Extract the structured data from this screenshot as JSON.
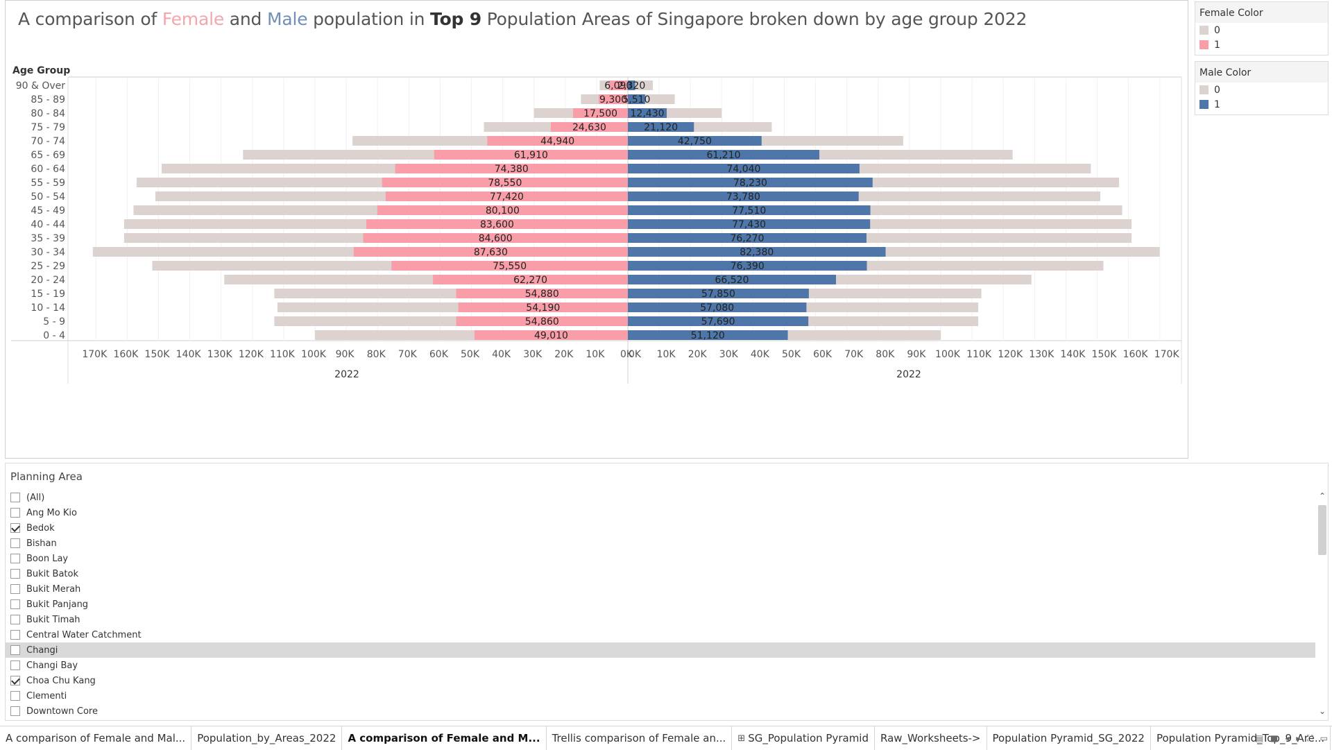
{
  "title": {
    "part1": "A comparison of ",
    "female_word": "Female",
    "part2": " and ",
    "male_word": "Male",
    "part3": " population in ",
    "bold_word": "Top 9",
    "part4": " Population Areas of Singapore broken down by age group 2022"
  },
  "colors": {
    "female": "#f99ea8",
    "male": "#4e76a8",
    "total": "#dcd3d0",
    "female_title": "#f4a6ac",
    "male_title": "#6f8fb7"
  },
  "legends": [
    {
      "title": "Female Color",
      "items": [
        {
          "label": "0",
          "color": "#dcd3d0"
        },
        {
          "label": "1",
          "color": "#f99ea8"
        }
      ]
    },
    {
      "title": "Male Color",
      "items": [
        {
          "label": "0",
          "color": "#dcd3d0"
        },
        {
          "label": "1",
          "color": "#4e76a8"
        }
      ]
    }
  ],
  "chart_data": {
    "type": "bar",
    "orientation": "horizontal-pyramid",
    "row_header": "Age Group",
    "categories": [
      "90 & Over",
      "85 - 89",
      "80 - 84",
      "75 - 79",
      "70 - 74",
      "65 - 69",
      "60 - 64",
      "55 - 59",
      "50 - 54",
      "45 - 49",
      "40 - 44",
      "35 - 39",
      "30 - 34",
      "25 - 29",
      "20 - 24",
      "15 - 19",
      "10 - 14",
      "5 - 9",
      "0 - 4"
    ],
    "series": [
      {
        "side": "female",
        "values": [
          6090,
          9300,
          17500,
          24630,
          44940,
          61910,
          74380,
          78550,
          77420,
          80100,
          83600,
          84600,
          87630,
          75550,
          62270,
          54880,
          54190,
          54860,
          49010
        ],
        "value_labels": [
          "6,090",
          "9,300",
          "17,500",
          "24,630",
          "44,940",
          "61,910",
          "74,380",
          "78,550",
          "77,420",
          "80,100",
          "83,600",
          "84,600",
          "87,630",
          "75,550",
          "62,270",
          "54,880",
          "54,190",
          "54,860",
          "49,010"
        ]
      },
      {
        "side": "female-background",
        "values": [
          9000,
          15000,
          30000,
          46000,
          88000,
          123000,
          149000,
          157000,
          151000,
          158000,
          161000,
          161000,
          171000,
          152000,
          129000,
          113000,
          112000,
          113000,
          100000
        ]
      },
      {
        "side": "male",
        "values": [
          2320,
          5510,
          12430,
          21120,
          42750,
          61210,
          74040,
          78230,
          73780,
          77510,
          77430,
          76270,
          82380,
          76390,
          66520,
          57850,
          57080,
          57690,
          51120
        ],
        "value_labels": [
          "2,320",
          "5,510",
          "12,430",
          "21,120",
          "42,750",
          "61,210",
          "74,040",
          "78,230",
          "73,780",
          "77,510",
          "77,430",
          "76,270",
          "82,380",
          "76,390",
          "66,520",
          "57,850",
          "57,080",
          "57,690",
          "51,120"
        ]
      },
      {
        "side": "male-background",
        "values": [
          8000,
          15000,
          30000,
          46000,
          88000,
          123000,
          148000,
          157000,
          151000,
          158000,
          161000,
          161000,
          170000,
          152000,
          129000,
          113000,
          112000,
          112000,
          100000
        ]
      }
    ],
    "left_axis": {
      "ticks": [
        "170K",
        "160K",
        "150K",
        "140K",
        "130K",
        "120K",
        "110K",
        "100K",
        "90K",
        "80K",
        "70K",
        "60K",
        "50K",
        "40K",
        "30K",
        "20K",
        "10K",
        "0K"
      ],
      "label": "2022",
      "range": [
        0,
        178000
      ]
    },
    "right_axis": {
      "ticks": [
        "0K",
        "10K",
        "20K",
        "30K",
        "40K",
        "50K",
        "60K",
        "70K",
        "80K",
        "90K",
        "100K",
        "110K",
        "120K",
        "130K",
        "140K",
        "150K",
        "160K",
        "170K"
      ],
      "label": "2022",
      "range": [
        0,
        178000
      ]
    }
  },
  "filter": {
    "title": "Planning Area",
    "items": [
      {
        "label": "(All)",
        "checked": false
      },
      {
        "label": "Ang Mo Kio",
        "checked": false
      },
      {
        "label": "Bedok",
        "checked": true
      },
      {
        "label": "Bishan",
        "checked": false
      },
      {
        "label": "Boon Lay",
        "checked": false
      },
      {
        "label": "Bukit Batok",
        "checked": false
      },
      {
        "label": "Bukit Merah",
        "checked": false
      },
      {
        "label": "Bukit Panjang",
        "checked": false
      },
      {
        "label": "Bukit Timah",
        "checked": false
      },
      {
        "label": "Central Water Catchment",
        "checked": false
      },
      {
        "label": "Changi",
        "checked": false,
        "highlighted": true
      },
      {
        "label": "Changi Bay",
        "checked": false
      },
      {
        "label": "Choa Chu Kang",
        "checked": true
      },
      {
        "label": "Clementi",
        "checked": false
      },
      {
        "label": "Downtown Core",
        "checked": false
      }
    ]
  },
  "tabs": [
    {
      "label": "A comparison of Female and Mal...",
      "active": false,
      "icon": ""
    },
    {
      "label": "Population_by_Areas_2022",
      "active": false,
      "icon": ""
    },
    {
      "label": "A comparison of Female and M...",
      "active": true,
      "icon": ""
    },
    {
      "label": "Trellis comparison of Female an...",
      "active": false,
      "icon": ""
    },
    {
      "label": "SG_Population Pyramid",
      "active": false,
      "icon": "⊞"
    },
    {
      "label": "Raw_Worksheets->",
      "active": false,
      "icon": ""
    },
    {
      "label": "Population Pyramid_SG_2022",
      "active": false,
      "icon": ""
    },
    {
      "label": "Population Pyramid_Top_9_Are...",
      "active": false,
      "icon": ""
    }
  ],
  "tab_controls": [
    {
      "name": "grid-view-icon",
      "glyph": "▤"
    },
    {
      "name": "filmstrip-icon",
      "glyph": "■"
    },
    {
      "name": "scroll-left-icon",
      "glyph": "◂"
    },
    {
      "name": "scroll-right-icon",
      "glyph": "▸"
    },
    {
      "name": "fullscreen-icon",
      "glyph": "⛶"
    },
    {
      "name": "presentation-icon",
      "glyph": "▭"
    }
  ]
}
